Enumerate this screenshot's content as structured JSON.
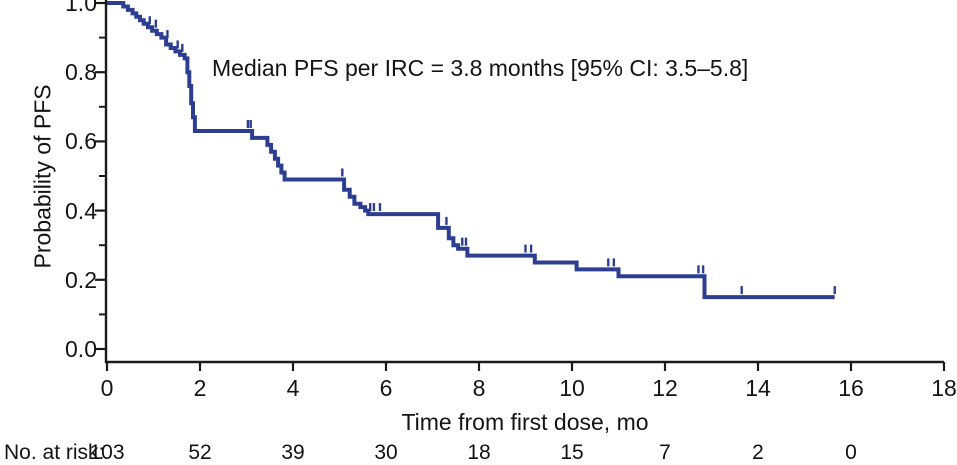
{
  "chart_data": {
    "type": "line",
    "subtype": "kaplan-meier-step-curve",
    "title": "",
    "annotation": "Median PFS per IRC = 3.8 months [95% CI: 3.5–5.8]",
    "xlabel": "Time from first dose, mo",
    "ylabel": "Probability of PFS",
    "xlim": [
      0,
      18
    ],
    "ylim": [
      0,
      1.0
    ],
    "x_ticks": [
      0,
      2,
      4,
      6,
      8,
      10,
      12,
      14,
      16,
      18
    ],
    "y_ticks": [
      "0.0",
      "0.2",
      "0.4",
      "0.6",
      "0.8",
      "1.0"
    ],
    "y_minor_ticks": [
      0.1,
      0.3,
      0.5,
      0.7,
      0.9
    ],
    "grid": false,
    "legend": "none",
    "line_color": "#2d3e91",
    "axis_color": "#1a1a1a",
    "series": [
      {
        "name": "PFS per IRC",
        "steps": [
          [
            0.0,
            1.0
          ],
          [
            0.35,
            1.0
          ],
          [
            0.35,
            0.99
          ],
          [
            0.45,
            0.99
          ],
          [
            0.45,
            0.98
          ],
          [
            0.55,
            0.98
          ],
          [
            0.55,
            0.97
          ],
          [
            0.63,
            0.97
          ],
          [
            0.63,
            0.96
          ],
          [
            0.71,
            0.96
          ],
          [
            0.71,
            0.95
          ],
          [
            0.79,
            0.95
          ],
          [
            0.79,
            0.94
          ],
          [
            0.88,
            0.94
          ],
          [
            0.88,
            0.93
          ],
          [
            0.97,
            0.93
          ],
          [
            0.97,
            0.92
          ],
          [
            1.07,
            0.92
          ],
          [
            1.07,
            0.91
          ],
          [
            1.17,
            0.91
          ],
          [
            1.17,
            0.9
          ],
          [
            1.27,
            0.9
          ],
          [
            1.27,
            0.88
          ],
          [
            1.37,
            0.88
          ],
          [
            1.37,
            0.87
          ],
          [
            1.47,
            0.87
          ],
          [
            1.47,
            0.86
          ],
          [
            1.57,
            0.86
          ],
          [
            1.57,
            0.85
          ],
          [
            1.67,
            0.85
          ],
          [
            1.67,
            0.84
          ],
          [
            1.73,
            0.84
          ],
          [
            1.73,
            0.8
          ],
          [
            1.77,
            0.8
          ],
          [
            1.77,
            0.76
          ],
          [
            1.81,
            0.76
          ],
          [
            1.81,
            0.71
          ],
          [
            1.85,
            0.71
          ],
          [
            1.85,
            0.67
          ],
          [
            1.89,
            0.67
          ],
          [
            1.89,
            0.63
          ],
          [
            3.12,
            0.63
          ],
          [
            3.12,
            0.61
          ],
          [
            3.45,
            0.61
          ],
          [
            3.45,
            0.59
          ],
          [
            3.53,
            0.59
          ],
          [
            3.53,
            0.57
          ],
          [
            3.61,
            0.57
          ],
          [
            3.61,
            0.55
          ],
          [
            3.68,
            0.55
          ],
          [
            3.68,
            0.53
          ],
          [
            3.75,
            0.53
          ],
          [
            3.75,
            0.51
          ],
          [
            3.82,
            0.51
          ],
          [
            3.82,
            0.49
          ],
          [
            5.1,
            0.49
          ],
          [
            5.1,
            0.46
          ],
          [
            5.22,
            0.46
          ],
          [
            5.22,
            0.44
          ],
          [
            5.32,
            0.44
          ],
          [
            5.32,
            0.42
          ],
          [
            5.45,
            0.42
          ],
          [
            5.45,
            0.41
          ],
          [
            5.55,
            0.41
          ],
          [
            5.55,
            0.4
          ],
          [
            5.62,
            0.4
          ],
          [
            5.62,
            0.39
          ],
          [
            7.12,
            0.39
          ],
          [
            7.12,
            0.35
          ],
          [
            7.35,
            0.35
          ],
          [
            7.35,
            0.32
          ],
          [
            7.45,
            0.32
          ],
          [
            7.45,
            0.3
          ],
          [
            7.55,
            0.3
          ],
          [
            7.55,
            0.29
          ],
          [
            7.75,
            0.29
          ],
          [
            7.75,
            0.27
          ],
          [
            9.2,
            0.27
          ],
          [
            9.2,
            0.25
          ],
          [
            10.1,
            0.25
          ],
          [
            10.1,
            0.23
          ],
          [
            11.0,
            0.23
          ],
          [
            11.0,
            0.21
          ],
          [
            12.85,
            0.21
          ],
          [
            12.85,
            0.15
          ],
          [
            15.65,
            0.15
          ]
        ],
        "censor_marks": [
          [
            0.92,
            0.93
          ],
          [
            1.05,
            0.92
          ],
          [
            1.3,
            0.89
          ],
          [
            1.52,
            0.86
          ],
          [
            1.62,
            0.85
          ],
          [
            3.03,
            0.63
          ],
          [
            3.09,
            0.63
          ],
          [
            5.06,
            0.49
          ],
          [
            5.66,
            0.39
          ],
          [
            5.74,
            0.39
          ],
          [
            5.87,
            0.39
          ],
          [
            7.3,
            0.35
          ],
          [
            7.64,
            0.29
          ],
          [
            7.72,
            0.29
          ],
          [
            9.0,
            0.27
          ],
          [
            9.12,
            0.27
          ],
          [
            10.78,
            0.23
          ],
          [
            10.9,
            0.23
          ],
          [
            12.72,
            0.21
          ],
          [
            12.82,
            0.21
          ],
          [
            13.65,
            0.15
          ],
          [
            15.65,
            0.15
          ]
        ],
        "median_pfs_months": 3.8,
        "ci95": [
          3.5,
          5.8
        ]
      }
    ],
    "at_risk": {
      "label": "No. at risk:",
      "times": [
        0,
        2,
        4,
        6,
        8,
        10,
        12,
        14,
        16
      ],
      "values": [
        103,
        52,
        39,
        30,
        18,
        15,
        7,
        2,
        0
      ]
    }
  }
}
